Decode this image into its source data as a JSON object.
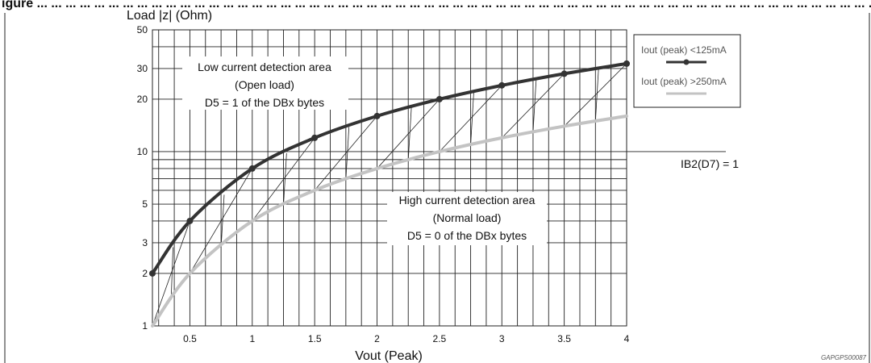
{
  "figure": {
    "caption_fragment": "igure ... ... ... ... ... ... ... ... ... ... ... ... ... ... ... ... ... ... ... ... ... ... ... ... ... ... ... ... ... ... ... ... ... ... ... ... ... ... ... ... ... ... ... ... ... ... ... ... ... ... ... ... ... ... ... ... ... ... ... ... ... ... ... ... ... ... ... ... ... ... ... ... ... ... ... ... ... ... ... ... ... ... ... ... ... ... ... ... ... ... ... ... ... ... ... ... ... ... ... ... ... ... ... ... ... ... ... ... ... ... ... ... ... ... ... ... ... ... ... ... ... ... ... ... ... ... ... ... ... ... ... ...",
    "reference_code": "GAPGPS00087"
  },
  "chart_data": {
    "type": "line",
    "title": "",
    "xlabel": "Vout (Peak)",
    "ylabel": "Load |z| (Ohm)",
    "xlim": [
      0.2,
      4
    ],
    "ylim": [
      1,
      50
    ],
    "yscale": "log",
    "x_ticks": [
      0.5,
      1,
      1.5,
      2,
      2.5,
      3,
      3.5,
      4
    ],
    "x_tick_labels": [
      "0.5",
      "1",
      "1.5",
      "2",
      "2.5",
      "3",
      "3.5",
      "4"
    ],
    "y_ticks": [
      1,
      2,
      3,
      5,
      10,
      20,
      30,
      50
    ],
    "y_tick_labels": [
      "1",
      "2",
      "3",
      "5",
      "10",
      "20",
      "30",
      "50"
    ],
    "grid": true,
    "legend_position": "top-right",
    "series": [
      {
        "name": "Iout (peak) <125mA",
        "color": "#333333",
        "markers": true,
        "x": [
          0.2,
          0.5,
          1,
          1.5,
          2,
          2.5,
          3,
          3.5,
          4
        ],
        "y": [
          2,
          4,
          8,
          12,
          16,
          20,
          24,
          28,
          32
        ]
      },
      {
        "name": "Iout (peak) >250mA",
        "color": "#c3c3c3",
        "markers": false,
        "x": [
          0.2,
          0.5,
          1,
          1.5,
          2,
          2.5,
          3,
          3.5,
          4
        ],
        "y": [
          1,
          2,
          4,
          6,
          8,
          10,
          12,
          14,
          16
        ]
      }
    ],
    "annotations": {
      "low_area": [
        "Low current detection area",
        "(Open load)",
        "D5 = 1 of the DBx bytes"
      ],
      "high_area": [
        "High current detection area",
        "(Normal load)",
        "D5 = 0 of the DBx bytes"
      ],
      "ib2_label": "IB2(D7) = 1"
    }
  }
}
